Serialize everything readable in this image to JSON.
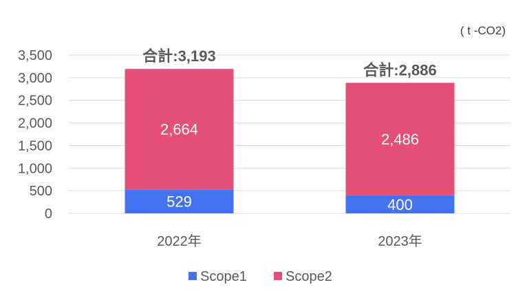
{
  "chart_data": {
    "type": "bar",
    "stacked": true,
    "unit_label": "( t -CO2)",
    "categories": [
      "2022年",
      "2023年"
    ],
    "series": [
      {
        "name": "Scope1",
        "values": [
          529,
          400
        ],
        "color": "#4472f0"
      },
      {
        "name": "Scope2",
        "values": [
          2664,
          2486
        ],
        "color": "#e34f75"
      }
    ],
    "totals": [
      "合計:3,193",
      "合計:2,886"
    ],
    "data_labels": [
      [
        "529",
        "400"
      ],
      [
        "2,664",
        "2,486"
      ]
    ],
    "ylim": [
      0,
      3500
    ],
    "yticks": [
      "0",
      "500",
      "1,000",
      "1,500",
      "2,000",
      "2,500",
      "3,000",
      "3,500"
    ],
    "grid": true,
    "legend_position": "bottom"
  }
}
